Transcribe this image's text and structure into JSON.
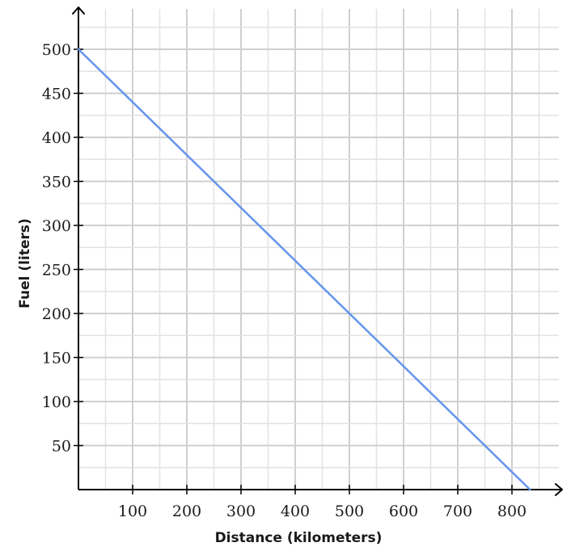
{
  "chart_data": {
    "type": "line",
    "title": "",
    "xlabel": "Distance (kilometers)",
    "ylabel": "Fuel (liters)",
    "xlim": [
      0,
      890
    ],
    "ylim": [
      0,
      530
    ],
    "x_ticks": [
      100,
      200,
      300,
      400,
      500,
      600,
      700,
      800
    ],
    "y_ticks": [
      50,
      100,
      150,
      200,
      250,
      300,
      350,
      400,
      450,
      500
    ],
    "x_tick_labels": [
      "100",
      "200",
      "300",
      "400",
      "500",
      "600",
      "700",
      "800"
    ],
    "y_tick_labels": [
      "50",
      "100",
      "150",
      "200",
      "250",
      "300",
      "350",
      "400",
      "450",
      "500"
    ],
    "grid": true,
    "minor_grid_step": {
      "x": 50,
      "y": 25
    },
    "series": [
      {
        "x": [
          0,
          833.3
        ],
        "y": [
          500,
          0
        ],
        "color": "#6495ed"
      }
    ]
  }
}
